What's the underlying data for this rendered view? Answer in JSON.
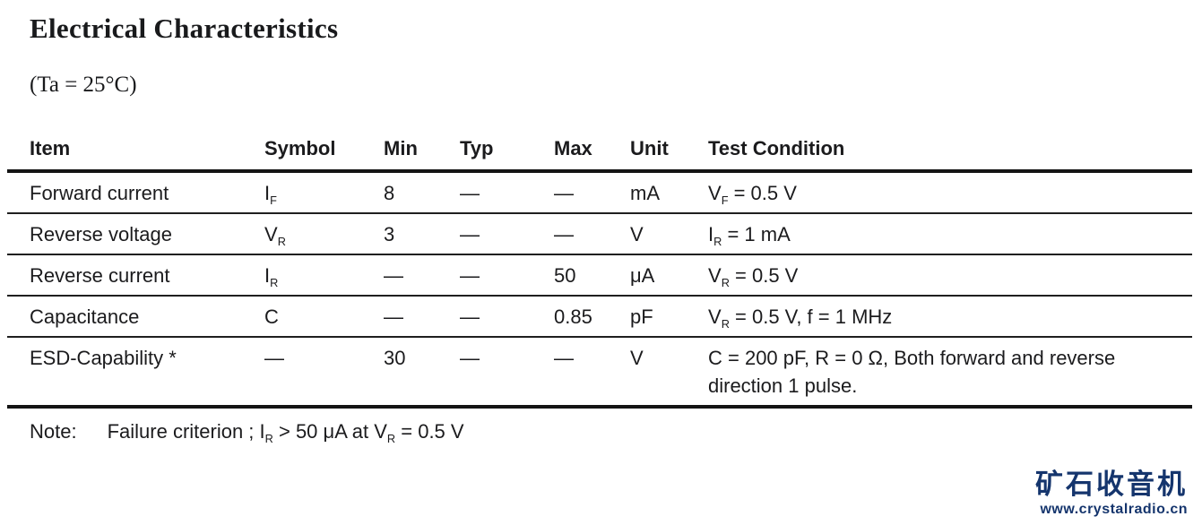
{
  "header": {
    "title": "Electrical Characteristics",
    "subtitle": "(Ta = 25°C)"
  },
  "table": {
    "columns": [
      {
        "key": "item",
        "label": "Item"
      },
      {
        "key": "symbol",
        "label": "Symbol"
      },
      {
        "key": "min",
        "label": "Min"
      },
      {
        "key": "typ",
        "label": "Typ"
      },
      {
        "key": "max",
        "label": "Max"
      },
      {
        "key": "unit",
        "label": "Unit"
      },
      {
        "key": "condition",
        "label": "Test Condition"
      }
    ],
    "rows": [
      {
        "item": "Forward current",
        "symbol": "I_{F}",
        "min": "8",
        "typ": "—",
        "max": "—",
        "unit": "mA",
        "condition": "V_{F} = 0.5 V"
      },
      {
        "item": "Reverse voltage",
        "symbol": "V_{R}",
        "min": "3",
        "typ": "—",
        "max": "—",
        "unit": "V",
        "condition": "I_{R} = 1 mA"
      },
      {
        "item": "Reverse current",
        "symbol": "I_{R}",
        "min": "—",
        "typ": "—",
        "max": "50",
        "unit": "μA",
        "condition": "V_{R} = 0.5 V"
      },
      {
        "item": "Capacitance",
        "symbol": "C",
        "min": "—",
        "typ": "—",
        "max": "0.85",
        "unit": "pF",
        "condition": "V_{R} = 0.5 V, f = 1 MHz"
      },
      {
        "item": "ESD-Capability *",
        "symbol": "—",
        "min": "30",
        "typ": "—",
        "max": "—",
        "unit": "V",
        "condition": "C = 200 pF, R = 0 Ω, Both forward and reverse direction 1 pulse."
      }
    ]
  },
  "note": {
    "label": "Note:",
    "text": "Failure criterion ; I_{R} > 50 μA at V_{R} = 0.5 V"
  },
  "watermark": {
    "name": "矿石收音机",
    "url": "www.crystalradio.cn",
    "color": "#15356d"
  }
}
